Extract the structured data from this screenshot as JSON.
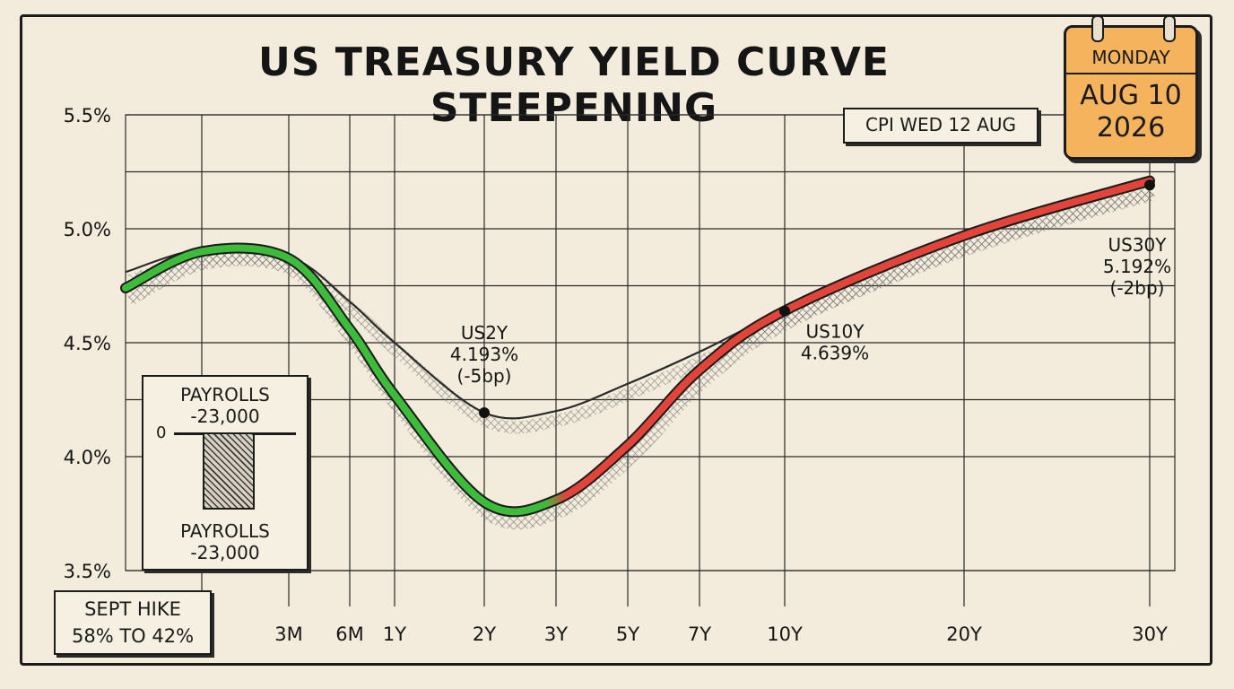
{
  "header": {
    "title": "US TREASURY YIELD CURVE STEEPENING",
    "cpi_label": "CPI WED 12 AUG"
  },
  "calendar": {
    "day": "MONDAY",
    "date_line1": "AUG 10",
    "date_line2": "2026",
    "color": "#f4b35c"
  },
  "payrolls": {
    "top_label_line1": "PAYROLLS",
    "top_label_line2": "-23,000",
    "zero_label": "0",
    "bottom_label_line1": "PAYROLLS",
    "bottom_label_line2": "-23,000",
    "value": -23000
  },
  "sept_hike": {
    "line1": "SEPT HIKE",
    "line2": "58% TO 42%"
  },
  "chart_data": {
    "type": "line",
    "title": "US TREASURY YIELD CURVE STEEPENING",
    "xlabel": "",
    "ylabel": "",
    "categories": [
      "3M",
      "6M",
      "1Y",
      "2Y",
      "3Y",
      "5Y",
      "7Y",
      "10Y",
      "20Y",
      "30Y"
    ],
    "ylim": [
      3.5,
      5.5
    ],
    "y_ticks": [
      "3.5%",
      "4.0%",
      "4.5%",
      "5.0%",
      "5.5%"
    ],
    "y_tick_values": [
      3.5,
      4.0,
      4.5,
      5.0,
      5.5
    ],
    "grid": true,
    "colors": {
      "falling": "#3dbb3a",
      "rising": "#e2443a",
      "prior": "#2a2a2a"
    },
    "series": [
      {
        "values": [
          4.88,
          4.68,
          4.5,
          4.193,
          4.2,
          4.32,
          4.46,
          4.639,
          4.95,
          5.192
        ]
      },
      {
        "values": [
          4.87,
          4.56,
          4.27,
          3.8,
          3.81,
          4.05,
          4.38,
          4.64,
          4.97,
          5.21
        ]
      }
    ],
    "annotations": [
      {
        "line1": "US2Y",
        "line2": "4.193%",
        "line3": "(-5bp)",
        "x": "2Y",
        "y": 4.193
      },
      {
        "line1": "US10Y",
        "line2": "4.639%",
        "line3": "",
        "x": "10Y",
        "y": 4.639
      },
      {
        "line1": "US30Y",
        "line2": "5.192%",
        "line3": "(-2bp)",
        "x": "30Y",
        "y": 5.192
      }
    ]
  }
}
